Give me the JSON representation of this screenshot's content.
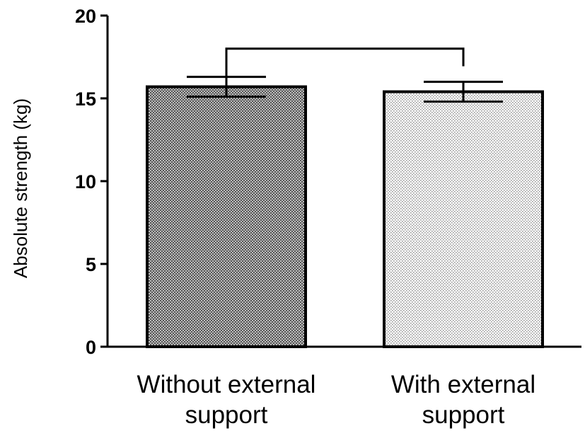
{
  "chart_data": {
    "type": "bar",
    "title": "",
    "xlabel": "",
    "ylabel": "Absolute strength (kg)",
    "ylim": [
      0,
      20
    ],
    "y_ticks": [
      0,
      5,
      10,
      15,
      20
    ],
    "grid": false,
    "categories": [
      [
        "Without external",
        "support"
      ],
      [
        "With external",
        "support"
      ]
    ],
    "values": [
      15.7,
      15.4
    ],
    "errors": [
      0.6,
      0.6
    ],
    "fill_patterns": [
      "dark-crosshatch",
      "light-dots"
    ],
    "significance_bracket": {
      "from": 0,
      "to": 1,
      "y": 18.0
    }
  }
}
